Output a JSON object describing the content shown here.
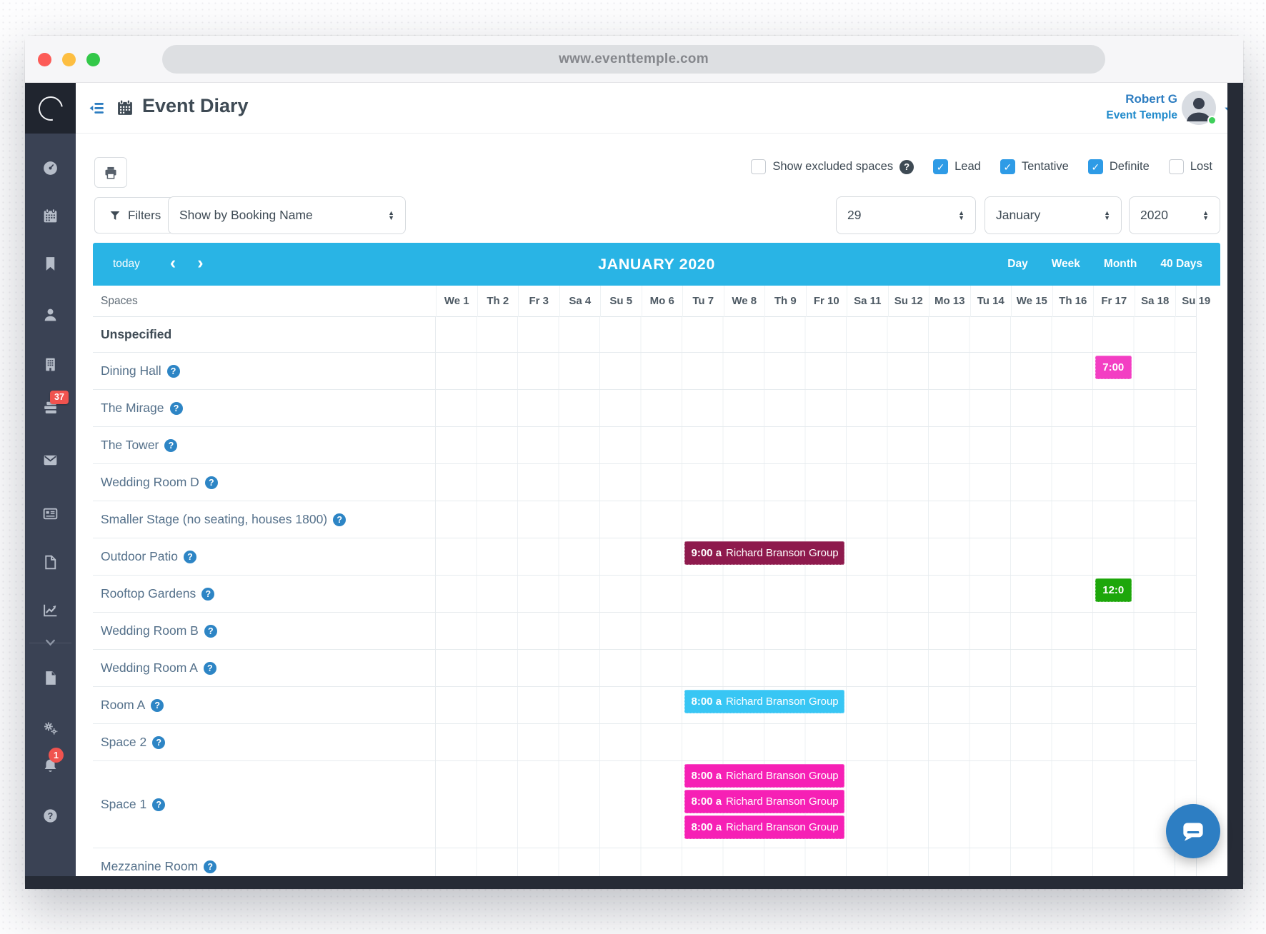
{
  "browser": {
    "url": "www.eventtemple.com"
  },
  "header": {
    "title": "Event Diary",
    "user_name": "Robert G",
    "user_account": "Event Temple",
    "menu_icon": "menu-toggle-icon",
    "title_icon": "calendar-icon"
  },
  "sidebar": {
    "items": [
      {
        "icon": "dashboard-icon"
      },
      {
        "icon": "calendar-icon"
      },
      {
        "icon": "bookmark-icon"
      },
      {
        "icon": "contacts-icon"
      },
      {
        "icon": "company-icon"
      },
      {
        "icon": "tasks-icon",
        "badge": "37"
      },
      {
        "icon": "mail-icon"
      },
      {
        "icon": "news-icon"
      },
      {
        "icon": "document-icon"
      },
      {
        "icon": "reports-icon"
      },
      {
        "icon": "chevron-down-icon"
      },
      {
        "icon": "file-icon"
      },
      {
        "icon": "settings-icon"
      },
      {
        "icon": "notifications-icon",
        "badge": "1"
      },
      {
        "icon": "help-icon"
      }
    ]
  },
  "toolbar": {
    "print_icon": "printer-icon",
    "checkboxes": [
      {
        "label": "Show excluded spaces",
        "checked": false,
        "help": true
      },
      {
        "label": "Lead",
        "checked": true
      },
      {
        "label": "Tentative",
        "checked": true
      },
      {
        "label": "Definite",
        "checked": true
      },
      {
        "label": "Lost",
        "checked": false
      }
    ],
    "filters_label": "Filters",
    "filter_icon": "funnel-icon",
    "show_by_value": "Show by Booking Name",
    "day_value": "29",
    "month_value": "January",
    "year_value": "2020"
  },
  "calendar_bar": {
    "today_label": "today",
    "title": "JANUARY 2020",
    "views": [
      "Day",
      "Week",
      "Month",
      "40 Days"
    ],
    "color": "#29B4E5"
  },
  "grid": {
    "spaces_header": "Spaces",
    "days": [
      "We 1",
      "Th 2",
      "Fr 3",
      "Sa 4",
      "Su 5",
      "Mo 6",
      "Tu 7",
      "We 8",
      "Th 9",
      "Fr 10",
      "Sa 11",
      "Su 12",
      "Mo 13",
      "Tu 14",
      "We 15",
      "Th 16",
      "Fr 17",
      "Sa 18",
      "Su 19"
    ],
    "rows": [
      {
        "name": "Unspecified",
        "bold": true,
        "help": false
      },
      {
        "name": "Dining Hall",
        "help": true
      },
      {
        "name": "The Mirage",
        "help": true
      },
      {
        "name": "The Tower",
        "help": true
      },
      {
        "name": "Wedding Room D",
        "help": true
      },
      {
        "name": "Smaller Stage (no seating, houses 1800)",
        "help": true
      },
      {
        "name": "Outdoor Patio",
        "help": true
      },
      {
        "name": "Rooftop Gardens",
        "help": true
      },
      {
        "name": "Wedding Room B",
        "help": true
      },
      {
        "name": "Wedding Room A",
        "help": true
      },
      {
        "name": "Room A",
        "help": true
      },
      {
        "name": "Space 2",
        "help": true
      },
      {
        "name": "Space 1",
        "help": true,
        "tall": true
      },
      {
        "name": "Mezzanine Room",
        "help": true
      }
    ],
    "events": [
      {
        "row": "Dining Hall",
        "day": "Fr 17",
        "span": 1,
        "time": "7:00",
        "title": "",
        "color": "#F33EC3"
      },
      {
        "row": "Outdoor Patio",
        "day": "Tu 7",
        "span": 4,
        "time": "9:00 a",
        "title": "Richard Branson Group",
        "color": "#8E1A4D"
      },
      {
        "row": "Rooftop Gardens",
        "day": "Fr 17",
        "span": 1,
        "time": "12:0",
        "title": "",
        "color": "#1DA70B"
      },
      {
        "row": "Room A",
        "day": "Tu 7",
        "span": 4,
        "time": "8:00 a",
        "title": "Richard Branson Group",
        "color": "#38C6F4"
      },
      {
        "row": "Space 1",
        "day": "Tu 7",
        "span": 4,
        "time": "8:00 a",
        "title": "Richard Branson Group",
        "color": "#F620B5"
      },
      {
        "row": "Space 1",
        "day": "Tu 7",
        "span": 4,
        "time": "8:00 a",
        "title": "Richard Branson Group",
        "color": "#F620B5"
      },
      {
        "row": "Space 1",
        "day": "Tu 7",
        "span": 4,
        "time": "8:00 a",
        "title": "Richard Branson Group",
        "color": "#F620B5"
      }
    ]
  },
  "chat": {
    "icon": "chat-bubble-icon"
  }
}
